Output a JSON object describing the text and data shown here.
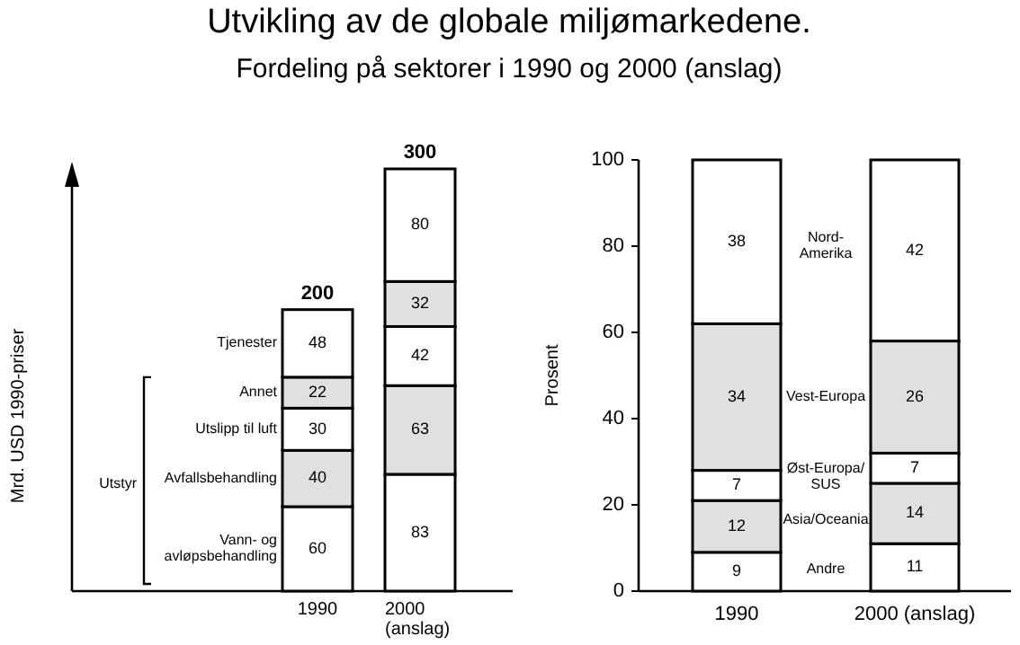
{
  "chart_data": [
    {
      "type": "bar",
      "title": "Utvikling av de globale miljømarkedene.",
      "subtitle": "Fordeling på sektorer i 1990 og 2000 (anslag)",
      "ylabel": "Mrd. USD 1990-priser",
      "categories": [
        "1990",
        "2000\n(anslag)"
      ],
      "stacked": true,
      "data_labels": true,
      "tick_labels": "x",
      "totals": [
        "200",
        "300"
      ],
      "annotations": [
        "Utstyr"
      ],
      "series": [
        {
          "name": "Vann- og\navløpsbehandling",
          "color": "#ffffff",
          "values": [
            60,
            83
          ]
        },
        {
          "name": "Avfallsbehandling",
          "color": "#e0e0e0",
          "values": [
            40,
            63
          ]
        },
        {
          "name": "Utslipp til luft",
          "color": "#ffffff",
          "values": [
            30,
            42
          ]
        },
        {
          "name": "Annet",
          "color": "#e0e0e0",
          "values": [
            22,
            32
          ]
        },
        {
          "name": "Tjenester",
          "color": "#ffffff",
          "values": [
            48,
            80
          ]
        }
      ]
    },
    {
      "type": "bar",
      "ylabel": "Prosent",
      "categories": [
        "1990",
        "2000 (anslag)"
      ],
      "stacked": true,
      "data_labels": true,
      "ylim": [
        0,
        100
      ],
      "yticks": [
        0,
        20,
        40,
        60,
        80,
        100
      ],
      "series": [
        {
          "name": "Andre",
          "color": "#ffffff",
          "values": [
            9,
            11
          ]
        },
        {
          "name": "Asia/Oceania",
          "color": "#e0e0e0",
          "values": [
            12,
            14
          ]
        },
        {
          "name": "Øst-Europa/\nSUS",
          "color": "#ffffff",
          "values": [
            7,
            7
          ]
        },
        {
          "name": "Vest-Europa",
          "color": "#e0e0e0",
          "values": [
            34,
            26
          ]
        },
        {
          "name": "Nord-\nAmerika",
          "color": "#ffffff",
          "values": [
            38,
            42
          ]
        }
      ]
    }
  ]
}
